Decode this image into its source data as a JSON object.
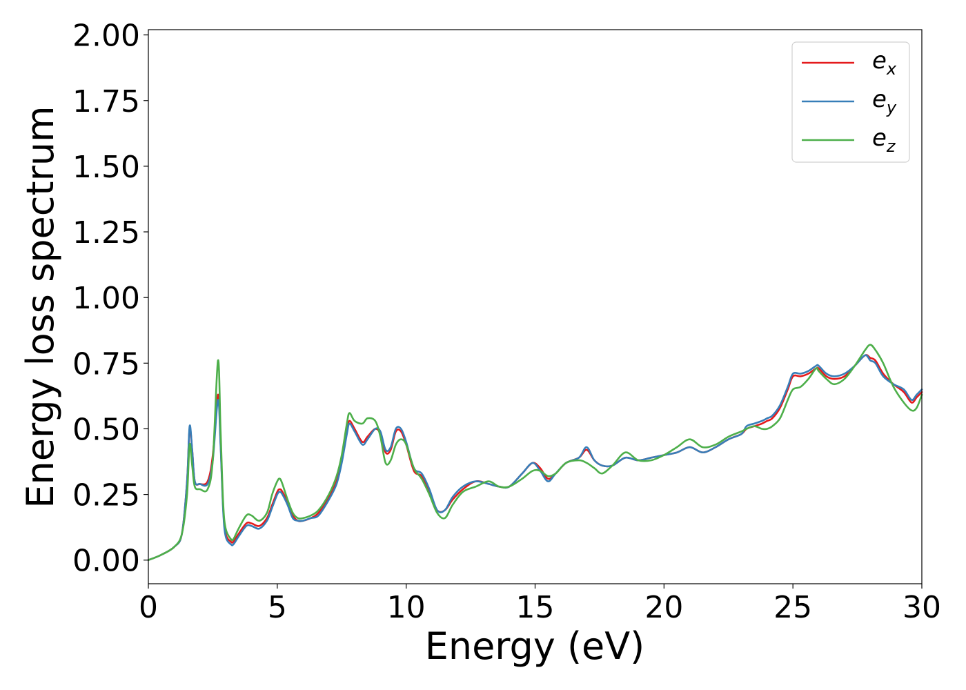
{
  "chart_data": {
    "type": "line",
    "xlabel": "Energy (eV)",
    "ylabel": "Energy loss spectrum",
    "xlim": [
      0,
      30
    ],
    "ylim": [
      -0.09,
      2.02
    ],
    "xticks": [
      0,
      5,
      10,
      15,
      20,
      25,
      30
    ],
    "xtick_labels": [
      "0",
      "5",
      "10",
      "15",
      "20",
      "25",
      "30"
    ],
    "yticks": [
      0,
      0.25,
      0.5,
      0.75,
      1.0,
      1.25,
      1.5,
      1.75,
      2.0
    ],
    "ytick_labels": [
      "0.00",
      "0.25",
      "0.50",
      "0.75",
      "1.00",
      "1.25",
      "1.50",
      "1.75",
      "2.00"
    ],
    "grid": false,
    "legend_position": "top-right",
    "series": [
      {
        "name": "e",
        "subscript": "x",
        "color": "#e41a1c",
        "x": [
          0,
          0.5,
          1.0,
          1.3,
          1.5,
          1.6,
          1.7,
          1.8,
          2.0,
          2.3,
          2.5,
          2.7,
          2.8,
          2.9,
          3.0,
          3.2,
          3.3,
          3.5,
          3.8,
          4.0,
          4.3,
          4.6,
          4.8,
          5.0,
          5.1,
          5.2,
          5.4,
          5.6,
          5.8,
          6.0,
          6.3,
          6.6,
          7.0,
          7.3,
          7.5,
          7.7,
          7.8,
          8.0,
          8.3,
          8.5,
          8.8,
          9.0,
          9.2,
          9.4,
          9.6,
          9.8,
          10.0,
          10.3,
          10.6,
          10.9,
          11.2,
          11.5,
          11.8,
          12.2,
          12.7,
          13.2,
          13.6,
          14.0,
          14.5,
          14.9,
          15.2,
          15.5,
          15.8,
          16.2,
          16.7,
          17.0,
          17.3,
          17.6,
          18.0,
          18.5,
          19.0,
          19.5,
          20.0,
          20.5,
          21.0,
          21.5,
          22.0,
          22.5,
          23.0,
          23.2,
          23.5,
          23.8,
          24.0,
          24.2,
          24.5,
          24.8,
          25.0,
          25.3,
          25.6,
          25.9,
          26.0,
          26.3,
          26.6,
          27.0,
          27.4,
          27.8,
          28.0,
          28.2,
          28.5,
          28.9,
          29.3,
          29.6,
          29.8,
          30.0
        ],
        "values": [
          0.0,
          0.02,
          0.05,
          0.1,
          0.3,
          0.5,
          0.42,
          0.3,
          0.29,
          0.3,
          0.4,
          0.63,
          0.45,
          0.2,
          0.1,
          0.07,
          0.07,
          0.1,
          0.14,
          0.14,
          0.13,
          0.16,
          0.21,
          0.26,
          0.27,
          0.26,
          0.22,
          0.17,
          0.15,
          0.15,
          0.16,
          0.18,
          0.24,
          0.3,
          0.38,
          0.49,
          0.53,
          0.5,
          0.45,
          0.47,
          0.5,
          0.48,
          0.41,
          0.42,
          0.49,
          0.49,
          0.44,
          0.34,
          0.32,
          0.26,
          0.19,
          0.19,
          0.23,
          0.27,
          0.3,
          0.29,
          0.28,
          0.28,
          0.33,
          0.37,
          0.35,
          0.31,
          0.33,
          0.37,
          0.39,
          0.42,
          0.38,
          0.36,
          0.36,
          0.39,
          0.38,
          0.39,
          0.4,
          0.41,
          0.43,
          0.41,
          0.43,
          0.46,
          0.48,
          0.5,
          0.51,
          0.52,
          0.53,
          0.54,
          0.58,
          0.65,
          0.7,
          0.7,
          0.71,
          0.73,
          0.73,
          0.7,
          0.69,
          0.7,
          0.74,
          0.78,
          0.77,
          0.76,
          0.71,
          0.67,
          0.64,
          0.6,
          0.62,
          0.64
        ]
      },
      {
        "name": "e",
        "subscript": "y",
        "color": "#377eb8",
        "x": [
          0,
          0.5,
          1.0,
          1.3,
          1.5,
          1.6,
          1.7,
          1.8,
          2.0,
          2.3,
          2.5,
          2.7,
          2.8,
          2.9,
          3.0,
          3.2,
          3.3,
          3.5,
          3.8,
          4.0,
          4.3,
          4.6,
          4.8,
          5.0,
          5.1,
          5.2,
          5.4,
          5.6,
          5.8,
          6.0,
          6.3,
          6.6,
          7.0,
          7.3,
          7.5,
          7.7,
          7.8,
          8.0,
          8.3,
          8.5,
          8.8,
          9.0,
          9.2,
          9.4,
          9.6,
          9.8,
          10.0,
          10.3,
          10.6,
          10.9,
          11.2,
          11.5,
          11.8,
          12.2,
          12.7,
          13.2,
          13.6,
          14.0,
          14.5,
          14.9,
          15.2,
          15.5,
          15.8,
          16.2,
          16.7,
          17.0,
          17.3,
          17.6,
          18.0,
          18.5,
          19.0,
          19.5,
          20.0,
          20.5,
          21.0,
          21.5,
          22.0,
          22.5,
          23.0,
          23.2,
          23.5,
          23.8,
          24.0,
          24.2,
          24.5,
          24.8,
          25.0,
          25.3,
          25.6,
          25.9,
          26.0,
          26.3,
          26.6,
          27.0,
          27.4,
          27.8,
          28.0,
          28.2,
          28.5,
          28.9,
          29.3,
          29.6,
          29.8,
          30.0
        ],
        "values": [
          0.0,
          0.02,
          0.05,
          0.1,
          0.3,
          0.51,
          0.42,
          0.3,
          0.29,
          0.29,
          0.38,
          0.61,
          0.44,
          0.19,
          0.09,
          0.06,
          0.06,
          0.09,
          0.13,
          0.13,
          0.12,
          0.15,
          0.2,
          0.25,
          0.26,
          0.25,
          0.21,
          0.16,
          0.15,
          0.15,
          0.16,
          0.17,
          0.23,
          0.29,
          0.37,
          0.48,
          0.52,
          0.49,
          0.44,
          0.46,
          0.5,
          0.49,
          0.42,
          0.43,
          0.5,
          0.5,
          0.45,
          0.35,
          0.33,
          0.27,
          0.19,
          0.19,
          0.24,
          0.28,
          0.3,
          0.29,
          0.28,
          0.28,
          0.33,
          0.37,
          0.34,
          0.3,
          0.33,
          0.37,
          0.39,
          0.43,
          0.38,
          0.36,
          0.36,
          0.39,
          0.38,
          0.39,
          0.4,
          0.41,
          0.43,
          0.41,
          0.43,
          0.46,
          0.48,
          0.51,
          0.52,
          0.53,
          0.54,
          0.55,
          0.59,
          0.66,
          0.71,
          0.71,
          0.72,
          0.74,
          0.74,
          0.71,
          0.7,
          0.71,
          0.74,
          0.78,
          0.76,
          0.75,
          0.7,
          0.67,
          0.65,
          0.61,
          0.63,
          0.65
        ]
      },
      {
        "name": "e",
        "subscript": "z",
        "color": "#4daf4a",
        "x": [
          0,
          0.5,
          1.0,
          1.3,
          1.5,
          1.6,
          1.7,
          1.8,
          2.0,
          2.3,
          2.5,
          2.7,
          2.8,
          2.9,
          3.0,
          3.2,
          3.3,
          3.5,
          3.8,
          4.0,
          4.3,
          4.6,
          4.8,
          5.0,
          5.1,
          5.2,
          5.4,
          5.6,
          5.8,
          6.0,
          6.3,
          6.6,
          7.0,
          7.3,
          7.5,
          7.7,
          7.8,
          8.0,
          8.3,
          8.5,
          8.8,
          9.0,
          9.2,
          9.4,
          9.6,
          9.8,
          10.0,
          10.3,
          10.6,
          10.9,
          11.2,
          11.5,
          11.8,
          12.2,
          12.7,
          13.2,
          13.6,
          14.0,
          14.5,
          14.9,
          15.2,
          15.5,
          15.8,
          16.2,
          16.7,
          17.0,
          17.3,
          17.6,
          18.0,
          18.5,
          19.0,
          19.5,
          20.0,
          20.5,
          21.0,
          21.5,
          22.0,
          22.5,
          23.0,
          23.2,
          23.5,
          23.8,
          24.0,
          24.2,
          24.5,
          24.8,
          25.0,
          25.3,
          25.6,
          25.9,
          26.0,
          26.3,
          26.6,
          27.0,
          27.4,
          27.8,
          28.0,
          28.2,
          28.5,
          28.9,
          29.3,
          29.6,
          29.8,
          30.0
        ],
        "values": [
          0.0,
          0.02,
          0.05,
          0.1,
          0.25,
          0.44,
          0.36,
          0.28,
          0.27,
          0.27,
          0.38,
          0.76,
          0.5,
          0.22,
          0.12,
          0.08,
          0.08,
          0.12,
          0.17,
          0.17,
          0.15,
          0.18,
          0.25,
          0.3,
          0.31,
          0.29,
          0.23,
          0.18,
          0.16,
          0.16,
          0.17,
          0.19,
          0.25,
          0.32,
          0.4,
          0.52,
          0.56,
          0.53,
          0.52,
          0.54,
          0.53,
          0.47,
          0.37,
          0.38,
          0.44,
          0.46,
          0.44,
          0.35,
          0.31,
          0.25,
          0.18,
          0.16,
          0.21,
          0.26,
          0.28,
          0.3,
          0.28,
          0.28,
          0.31,
          0.34,
          0.34,
          0.32,
          0.33,
          0.37,
          0.38,
          0.37,
          0.35,
          0.33,
          0.36,
          0.41,
          0.38,
          0.38,
          0.4,
          0.43,
          0.46,
          0.43,
          0.44,
          0.47,
          0.49,
          0.5,
          0.51,
          0.5,
          0.5,
          0.51,
          0.54,
          0.61,
          0.65,
          0.66,
          0.69,
          0.73,
          0.72,
          0.69,
          0.67,
          0.69,
          0.74,
          0.8,
          0.82,
          0.8,
          0.75,
          0.66,
          0.6,
          0.57,
          0.58,
          0.63
        ]
      }
    ]
  }
}
